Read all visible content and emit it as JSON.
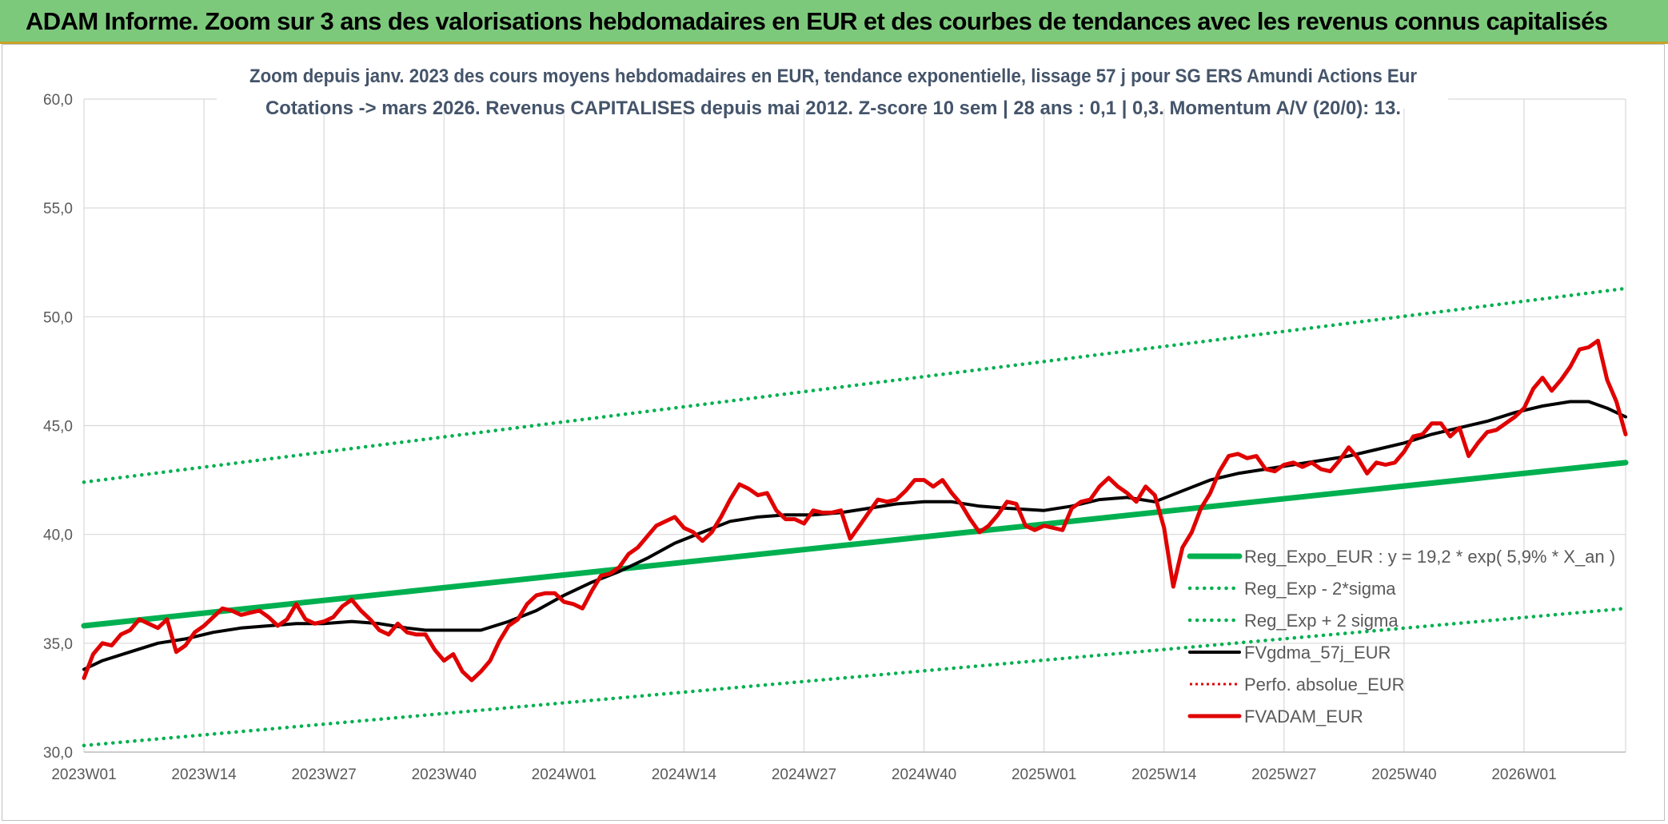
{
  "banner": {
    "title": "ADAM Informe. Zoom sur 3 ans des valorisations hebdomadaires en EUR et des courbes de tendances avec les revenus connus capitalisés"
  },
  "chart_data": {
    "type": "line",
    "title": "Zoom depuis janv. 2023 des cours moyens hebdomadaires en EUR, tendance exponentielle, lissage 57 j pour SG ERS Amundi Actions Eur",
    "subtitle": "Cotations -> mars 2026. Revenus CAPITALISES depuis mai 2012. Z-score 10 sem | 28 ans : 0,1 | 0,3. Momentum A/V (20/0): 13.",
    "xlabel": "",
    "ylabel": "",
    "ylim": [
      30,
      60
    ],
    "yticks": [
      "30,0",
      "35,0",
      "40,0",
      "45,0",
      "50,0",
      "55,0",
      "60,0"
    ],
    "xticks": [
      "2023W01",
      "2023W14",
      "2023W27",
      "2023W40",
      "2024W01",
      "2024W14",
      "2024W27",
      "2024W40",
      "2025W01",
      "2025W14",
      "2025W27",
      "2025W40",
      "2026W01"
    ],
    "x_start": "2023W01",
    "x_end": "2026W12",
    "grid": true,
    "legend_position": "bottom-right",
    "colors": {
      "trend": "#00b050",
      "band": "#00b050",
      "smooth": "#000000",
      "perf": "#e00000",
      "price": "#e00000",
      "grid": "#d9d9d9",
      "axis_text": "#595959",
      "title_text": "#404040"
    },
    "series": [
      {
        "name": "Reg_Expo_EUR : y = 19,2 * exp( 5,9% *  X_an )",
        "style": "thick",
        "points": [
          [
            "2023W01",
            35.8
          ],
          [
            "2026W12",
            43.3
          ]
        ]
      },
      {
        "name": "Reg_Exp - 2*sigma",
        "style": "dotted",
        "points": [
          [
            "2023W01",
            30.3
          ],
          [
            "2026W12",
            36.6
          ]
        ]
      },
      {
        "name": "Reg_Exp + 2 sigma",
        "style": "dotted",
        "points": [
          [
            "2023W01",
            42.4
          ],
          [
            "2026W12",
            51.3
          ]
        ]
      },
      {
        "name": "FVgdma_57j_EUR",
        "style": "solid",
        "points": [
          [
            "2023W01",
            33.8
          ],
          [
            "2023W03",
            34.2
          ],
          [
            "2023W06",
            34.6
          ],
          [
            "2023W09",
            35.0
          ],
          [
            "2023W12",
            35.2
          ],
          [
            "2023W15",
            35.5
          ],
          [
            "2023W18",
            35.7
          ],
          [
            "2023W21",
            35.8
          ],
          [
            "2023W24",
            35.9
          ],
          [
            "2023W27",
            35.9
          ],
          [
            "2023W30",
            36.0
          ],
          [
            "2023W33",
            35.9
          ],
          [
            "2023W36",
            35.7
          ],
          [
            "2023W38",
            35.6
          ],
          [
            "2023W40",
            35.6
          ],
          [
            "2023W44",
            35.6
          ],
          [
            "2023W47",
            36.0
          ],
          [
            "2023W50",
            36.5
          ],
          [
            "2024W01",
            37.2
          ],
          [
            "2024W04",
            37.8
          ],
          [
            "2024W07",
            38.3
          ],
          [
            "2024W10",
            38.9
          ],
          [
            "2024W13",
            39.6
          ],
          [
            "2024W16",
            40.1
          ],
          [
            "2024W19",
            40.6
          ],
          [
            "2024W22",
            40.8
          ],
          [
            "2024W25",
            40.9
          ],
          [
            "2024W28",
            40.9
          ],
          [
            "2024W31",
            41.0
          ],
          [
            "2024W34",
            41.2
          ],
          [
            "2024W37",
            41.4
          ],
          [
            "2024W40",
            41.5
          ],
          [
            "2024W43",
            41.5
          ],
          [
            "2024W46",
            41.3
          ],
          [
            "2024W49",
            41.2
          ],
          [
            "2025W01",
            41.1
          ],
          [
            "2025W04",
            41.3
          ],
          [
            "2025W07",
            41.6
          ],
          [
            "2025W10",
            41.7
          ],
          [
            "2025W13",
            41.5
          ],
          [
            "2025W16",
            42.0
          ],
          [
            "2025W19",
            42.5
          ],
          [
            "2025W22",
            42.8
          ],
          [
            "2025W25",
            43.0
          ],
          [
            "2025W28",
            43.2
          ],
          [
            "2025W31",
            43.4
          ],
          [
            "2025W34",
            43.6
          ],
          [
            "2025W37",
            43.9
          ],
          [
            "2025W40",
            44.2
          ],
          [
            "2025W43",
            44.6
          ],
          [
            "2025W46",
            44.9
          ],
          [
            "2025W49",
            45.2
          ],
          [
            "2025W52",
            45.6
          ],
          [
            "2026W03",
            45.9
          ],
          [
            "2026W06",
            46.1
          ],
          [
            "2026W08",
            46.1
          ],
          [
            "2026W10",
            45.8
          ],
          [
            "2026W12",
            45.4
          ]
        ]
      },
      {
        "name": "Perfo. absolue_EUR",
        "style": "dotted-red",
        "points": []
      },
      {
        "name": "FVADAM_EUR",
        "style": "thick",
        "points": [
          [
            "2023W01",
            33.4
          ],
          [
            "2023W02",
            34.5
          ],
          [
            "2023W03",
            35.0
          ],
          [
            "2023W04",
            34.9
          ],
          [
            "2023W05",
            35.4
          ],
          [
            "2023W06",
            35.6
          ],
          [
            "2023W07",
            36.1
          ],
          [
            "2023W08",
            35.9
          ],
          [
            "2023W09",
            35.7
          ],
          [
            "2023W10",
            36.1
          ],
          [
            "2023W11",
            34.6
          ],
          [
            "2023W12",
            34.9
          ],
          [
            "2023W13",
            35.5
          ],
          [
            "2023W14",
            35.8
          ],
          [
            "2023W15",
            36.2
          ],
          [
            "2023W16",
            36.6
          ],
          [
            "2023W17",
            36.5
          ],
          [
            "2023W18",
            36.3
          ],
          [
            "2023W19",
            36.4
          ],
          [
            "2023W20",
            36.5
          ],
          [
            "2023W21",
            36.2
          ],
          [
            "2023W22",
            35.8
          ],
          [
            "2023W23",
            36.1
          ],
          [
            "2023W24",
            36.8
          ],
          [
            "2023W25",
            36.1
          ],
          [
            "2023W26",
            35.9
          ],
          [
            "2023W27",
            36.0
          ],
          [
            "2023W28",
            36.2
          ],
          [
            "2023W29",
            36.7
          ],
          [
            "2023W30",
            37.0
          ],
          [
            "2023W31",
            36.5
          ],
          [
            "2023W32",
            36.1
          ],
          [
            "2023W33",
            35.6
          ],
          [
            "2023W34",
            35.4
          ],
          [
            "2023W35",
            35.9
          ],
          [
            "2023W36",
            35.5
          ],
          [
            "2023W37",
            35.4
          ],
          [
            "2023W38",
            35.4
          ],
          [
            "2023W39",
            34.7
          ],
          [
            "2023W40",
            34.2
          ],
          [
            "2023W41",
            34.5
          ],
          [
            "2023W42",
            33.7
          ],
          [
            "2023W43",
            33.3
          ],
          [
            "2023W44",
            33.7
          ],
          [
            "2023W45",
            34.2
          ],
          [
            "2023W46",
            35.1
          ],
          [
            "2023W47",
            35.8
          ],
          [
            "2023W48",
            36.1
          ],
          [
            "2023W49",
            36.8
          ],
          [
            "2023W50",
            37.2
          ],
          [
            "2023W51",
            37.3
          ],
          [
            "2023W52",
            37.3
          ],
          [
            "2024W01",
            36.9
          ],
          [
            "2024W02",
            36.8
          ],
          [
            "2024W03",
            36.6
          ],
          [
            "2024W04",
            37.4
          ],
          [
            "2024W05",
            38.1
          ],
          [
            "2024W06",
            38.2
          ],
          [
            "2024W07",
            38.5
          ],
          [
            "2024W08",
            39.1
          ],
          [
            "2024W09",
            39.4
          ],
          [
            "2024W10",
            39.9
          ],
          [
            "2024W11",
            40.4
          ],
          [
            "2024W12",
            40.6
          ],
          [
            "2024W13",
            40.8
          ],
          [
            "2024W14",
            40.3
          ],
          [
            "2024W15",
            40.1
          ],
          [
            "2024W16",
            39.7
          ],
          [
            "2024W17",
            40.1
          ],
          [
            "2024W18",
            40.8
          ],
          [
            "2024W19",
            41.6
          ],
          [
            "2024W20",
            42.3
          ],
          [
            "2024W21",
            42.1
          ],
          [
            "2024W22",
            41.8
          ],
          [
            "2024W23",
            41.9
          ],
          [
            "2024W24",
            41.1
          ],
          [
            "2024W25",
            40.7
          ],
          [
            "2024W26",
            40.7
          ],
          [
            "2024W27",
            40.5
          ],
          [
            "2024W28",
            41.1
          ],
          [
            "2024W29",
            41.0
          ],
          [
            "2024W30",
            41.0
          ],
          [
            "2024W31",
            41.1
          ],
          [
            "2024W32",
            39.8
          ],
          [
            "2024W33",
            40.4
          ],
          [
            "2024W34",
            41.0
          ],
          [
            "2024W35",
            41.6
          ],
          [
            "2024W36",
            41.5
          ],
          [
            "2024W37",
            41.6
          ],
          [
            "2024W38",
            42.0
          ],
          [
            "2024W39",
            42.5
          ],
          [
            "2024W40",
            42.5
          ],
          [
            "2024W41",
            42.2
          ],
          [
            "2024W42",
            42.5
          ],
          [
            "2024W43",
            41.9
          ],
          [
            "2024W44",
            41.4
          ],
          [
            "2024W45",
            40.7
          ],
          [
            "2024W46",
            40.1
          ],
          [
            "2024W47",
            40.4
          ],
          [
            "2024W48",
            40.9
          ],
          [
            "2024W49",
            41.5
          ],
          [
            "2024W50",
            41.4
          ],
          [
            "2024W51",
            40.4
          ],
          [
            "2024W52",
            40.2
          ],
          [
            "2025W01",
            40.4
          ],
          [
            "2025W02",
            40.3
          ],
          [
            "2025W03",
            40.2
          ],
          [
            "2025W04",
            41.2
          ],
          [
            "2025W05",
            41.5
          ],
          [
            "2025W06",
            41.6
          ],
          [
            "2025W07",
            42.2
          ],
          [
            "2025W08",
            42.6
          ],
          [
            "2025W09",
            42.2
          ],
          [
            "2025W10",
            41.9
          ],
          [
            "2025W11",
            41.5
          ],
          [
            "2025W12",
            42.2
          ],
          [
            "2025W13",
            41.8
          ],
          [
            "2025W14",
            40.3
          ],
          [
            "2025W15",
            37.6
          ],
          [
            "2025W16",
            39.4
          ],
          [
            "2025W17",
            40.1
          ],
          [
            "2025W18",
            41.2
          ],
          [
            "2025W19",
            41.9
          ],
          [
            "2025W20",
            42.9
          ],
          [
            "2025W21",
            43.6
          ],
          [
            "2025W22",
            43.7
          ],
          [
            "2025W23",
            43.5
          ],
          [
            "2025W24",
            43.6
          ],
          [
            "2025W25",
            43.0
          ],
          [
            "2025W26",
            42.9
          ],
          [
            "2025W27",
            43.2
          ],
          [
            "2025W28",
            43.3
          ],
          [
            "2025W29",
            43.1
          ],
          [
            "2025W30",
            43.3
          ],
          [
            "2025W31",
            43.0
          ],
          [
            "2025W32",
            42.9
          ],
          [
            "2025W33",
            43.4
          ],
          [
            "2025W34",
            44.0
          ],
          [
            "2025W35",
            43.5
          ],
          [
            "2025W36",
            42.8
          ],
          [
            "2025W37",
            43.3
          ],
          [
            "2025W38",
            43.2
          ],
          [
            "2025W39",
            43.3
          ],
          [
            "2025W40",
            43.8
          ],
          [
            "2025W41",
            44.5
          ],
          [
            "2025W42",
            44.6
          ],
          [
            "2025W43",
            45.1
          ],
          [
            "2025W44",
            45.1
          ],
          [
            "2025W45",
            44.5
          ],
          [
            "2025W46",
            44.9
          ],
          [
            "2025W47",
            43.6
          ],
          [
            "2025W48",
            44.2
          ],
          [
            "2025W49",
            44.7
          ],
          [
            "2025W50",
            44.8
          ],
          [
            "2025W51",
            45.1
          ],
          [
            "2025W52",
            45.4
          ],
          [
            "2026W01",
            45.8
          ],
          [
            "2026W02",
            46.7
          ],
          [
            "2026W03",
            47.2
          ],
          [
            "2026W04",
            46.6
          ],
          [
            "2026W05",
            47.1
          ],
          [
            "2026W06",
            47.7
          ],
          [
            "2026W07",
            48.5
          ],
          [
            "2026W08",
            48.6
          ],
          [
            "2026W09",
            48.9
          ],
          [
            "2026W10",
            47.1
          ],
          [
            "2026W11",
            46.1
          ],
          [
            "2026W12",
            44.6
          ]
        ]
      }
    ]
  }
}
